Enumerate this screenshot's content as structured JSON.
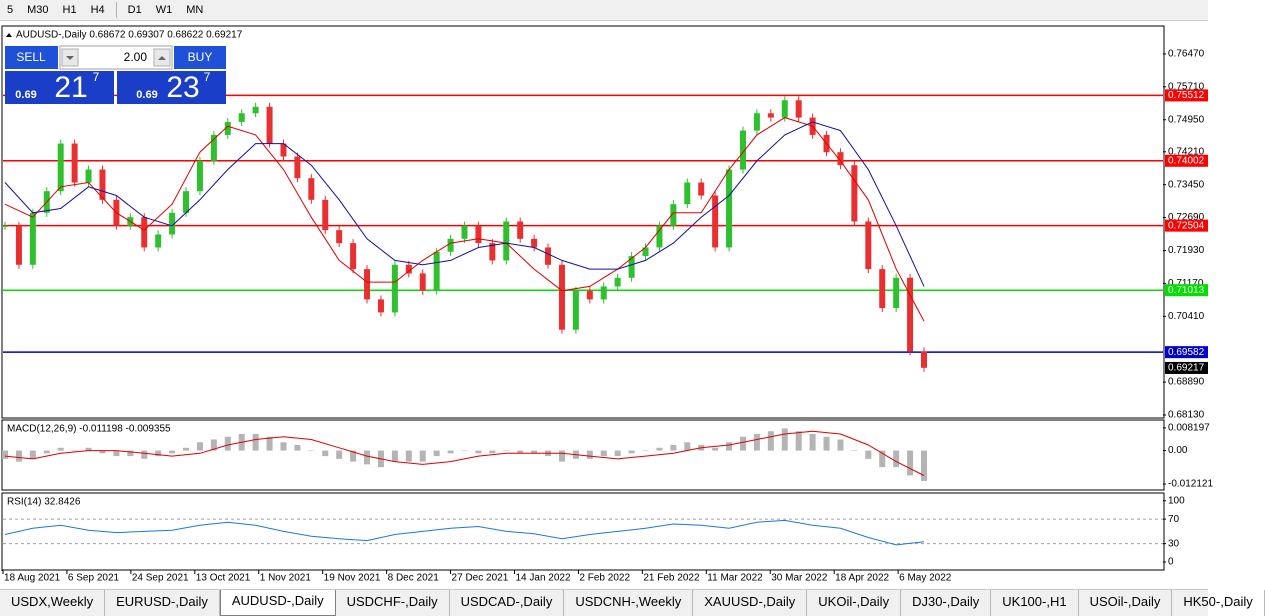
{
  "toolbar": {
    "timeframes": [
      "5",
      "M30",
      "H1",
      "H4"
    ],
    "timeframes_2": [
      "D1",
      "W1",
      "MN"
    ]
  },
  "trade_panel": {
    "sell": "SELL",
    "lot": "2.00",
    "buy": "BUY",
    "sell_price": {
      "prefix": "0.69",
      "big": "21",
      "sup": "7"
    },
    "buy_price": {
      "prefix": "0.69",
      "big": "23",
      "sup": "7"
    }
  },
  "chart_data": [
    {
      "type": "candlestick",
      "title": "AUDUSD-,Daily  0.68672 0.69307 0.68622 0.69217",
      "up_color": "#2ec02e",
      "down_color": "#e83030",
      "values": [
        0.725,
        0.716,
        0.728,
        0.733,
        0.744,
        0.735,
        0.738,
        0.731,
        0.725,
        0.727,
        0.72,
        0.723,
        0.728,
        0.733,
        0.74,
        0.746,
        0.749,
        0.751,
        0.7525,
        0.744,
        0.741,
        0.736,
        0.731,
        0.724,
        0.721,
        0.715,
        0.708,
        0.705,
        0.716,
        0.714,
        0.71,
        0.719,
        0.722,
        0.725,
        0.721,
        0.717,
        0.726,
        0.722,
        0.72,
        0.716,
        0.701,
        0.71,
        0.708,
        0.711,
        0.713,
        0.718,
        0.72,
        0.725,
        0.73,
        0.735,
        0.732,
        0.72,
        0.738,
        0.747,
        0.751,
        0.75,
        0.754,
        0.75,
        0.746,
        0.742,
        0.739,
        0.726,
        0.715,
        0.706,
        0.713,
        0.696,
        0.6922
      ],
      "series": [
        {
          "color": "#e00000",
          "values": [
            0.73,
            0.727,
            0.734,
            0.735,
            0.728,
            0.724,
            0.73,
            0.742,
            0.748,
            0.746,
            0.738,
            0.727,
            0.717,
            0.712,
            0.712,
            0.717,
            0.721,
            0.722,
            0.721,
            0.715,
            0.71,
            0.711,
            0.715,
            0.72,
            0.728,
            0.728,
            0.738,
            0.746,
            0.75,
            0.748,
            0.74,
            0.731,
            0.715,
            0.703
          ]
        },
        {
          "color": "#1010a0",
          "values": [
            0.735,
            0.728,
            0.729,
            0.734,
            0.732,
            0.727,
            0.725,
            0.731,
            0.738,
            0.744,
            0.744,
            0.739,
            0.731,
            0.722,
            0.717,
            0.716,
            0.717,
            0.72,
            0.721,
            0.72,
            0.717,
            0.715,
            0.715,
            0.717,
            0.721,
            0.727,
            0.732,
            0.74,
            0.746,
            0.749,
            0.747,
            0.738,
            0.725,
            0.711
          ]
        }
      ],
      "levels": [
        {
          "value": 0.75512,
          "color": "#ff0000"
        },
        {
          "value": 0.74002,
          "color": "#ff0000"
        },
        {
          "value": 0.72504,
          "color": "#ff0000"
        },
        {
          "value": 0.71013,
          "color": "#00e000"
        },
        {
          "value": 0.69582,
          "color": "#0000c8"
        }
      ],
      "last_price": 0.69217,
      "ylim": [
        0.68061,
        0.77092
      ],
      "yticks": [
        {
          "value": 0.7647,
          "label": "0.76470"
        },
        {
          "value": 0.7571,
          "label": "0.75710"
        },
        {
          "value": 0.7495,
          "label": "0.74950"
        },
        {
          "value": 0.7421,
          "label": "0.74210"
        },
        {
          "value": 0.7345,
          "label": "0.73450"
        },
        {
          "value": 0.7269,
          "label": "0.72690"
        },
        {
          "value": 0.7193,
          "label": "0.71930"
        },
        {
          "value": 0.7117,
          "label": "0.71170"
        },
        {
          "value": 0.7041,
          "label": "0.70410"
        },
        {
          "value": 0.6889,
          "label": "0.68890"
        },
        {
          "value": 0.6813,
          "label": "0.68130"
        }
      ],
      "xlim": [
        0,
        254
      ],
      "xticks": [
        {
          "value": 0,
          "label": "18 Aug 2021"
        },
        {
          "value": 14,
          "label": "6 Sep 2021"
        },
        {
          "value": 28,
          "label": "24 Sep 2021"
        },
        {
          "value": 42,
          "label": "13 Oct 2021"
        },
        {
          "value": 56,
          "label": "1 Nov 2021"
        },
        {
          "value": 70,
          "label": "19 Nov 2021"
        },
        {
          "value": 84,
          "label": "8 Dec 2021"
        },
        {
          "value": 98,
          "label": "27 Dec 2021"
        },
        {
          "value": 112,
          "label": "14 Jan 2022"
        },
        {
          "value": 126,
          "label": "2 Feb 2022"
        },
        {
          "value": 140,
          "label": "21 Feb 2022"
        },
        {
          "value": 154,
          "label": "11 Mar 2022"
        },
        {
          "value": 168,
          "label": "30 Mar 2022"
        },
        {
          "value": 182,
          "label": "18 Apr 2022"
        },
        {
          "value": 196,
          "label": "6 May 2022"
        }
      ]
    },
    {
      "type": "macd",
      "title": "MACD(12,26,9) -0.011198 -0.009355",
      "histogram": {
        "color": "#b4b4b4",
        "values": [
          -0.003,
          -0.004,
          -0.003,
          -0.001,
          0.001,
          0.0,
          0.001,
          -0.001,
          -0.002,
          -0.002,
          -0.003,
          -0.002,
          -0.001,
          0.001,
          0.003,
          0.004,
          0.005,
          0.006,
          0.006,
          0.005,
          0.003,
          0.002,
          0.0,
          -0.002,
          -0.003,
          -0.004,
          -0.005,
          -0.006,
          -0.004,
          -0.004,
          -0.004,
          -0.002,
          -0.001,
          0.0,
          -0.001,
          -0.001,
          0.0,
          -0.001,
          -0.001,
          -0.002,
          -0.004,
          -0.003,
          -0.003,
          -0.002,
          -0.002,
          -0.001,
          0.0,
          0.001,
          0.002,
          0.003,
          0.002,
          0.001,
          0.003,
          0.005,
          0.006,
          0.007,
          0.008,
          0.007,
          0.006,
          0.005,
          0.004,
          0.0,
          -0.003,
          -0.006,
          -0.006,
          -0.009,
          -0.011
        ]
      },
      "signal": {
        "color": "#e00000",
        "values": [
          -0.002,
          -0.003,
          -0.001,
          0.0,
          0.0,
          -0.001,
          -0.002,
          -0.001,
          0.002,
          0.004,
          0.005,
          0.004,
          0.001,
          -0.002,
          -0.004,
          -0.005,
          -0.004,
          -0.002,
          -0.001,
          -0.001,
          -0.001,
          -0.002,
          -0.003,
          -0.002,
          -0.001,
          0.001,
          0.002,
          0.004,
          0.006,
          0.007,
          0.006,
          0.002,
          -0.004,
          -0.009
        ]
      },
      "ylim": [
        -0.01426,
        0.01069
      ],
      "yticks": [
        0.008197,
        {
          "value": 0,
          "label": "0.00"
        },
        -0.012121
      ]
    },
    {
      "type": "rsi",
      "title": "RSI(14) 32.8426",
      "color": "#1e78d8",
      "values": [
        45,
        55,
        60,
        52,
        48,
        50,
        52,
        60,
        65,
        60,
        50,
        42,
        38,
        35,
        45,
        50,
        55,
        58,
        50,
        46,
        38,
        45,
        50,
        55,
        62,
        60,
        55,
        65,
        68,
        60,
        55,
        40,
        28,
        33
      ],
      "levels": [
        70,
        30
      ],
      "ylim": [
        -13,
        111
      ],
      "yticks": [
        100,
        70,
        30,
        0
      ]
    }
  ],
  "tabs": [
    "USDX,Weekly",
    "EURUSD-,Daily",
    "AUDUSD-,Daily",
    "USDCHF-,Daily",
    "USDCAD-,Daily",
    "USDCNH-,Weekly",
    "XAUUSD-,Daily",
    "UKOil-,Daily",
    "DJ30-,Daily",
    "UK100-,H1",
    "USOil-,Daily",
    "HK50-,Daily"
  ],
  "active_tab": 2
}
